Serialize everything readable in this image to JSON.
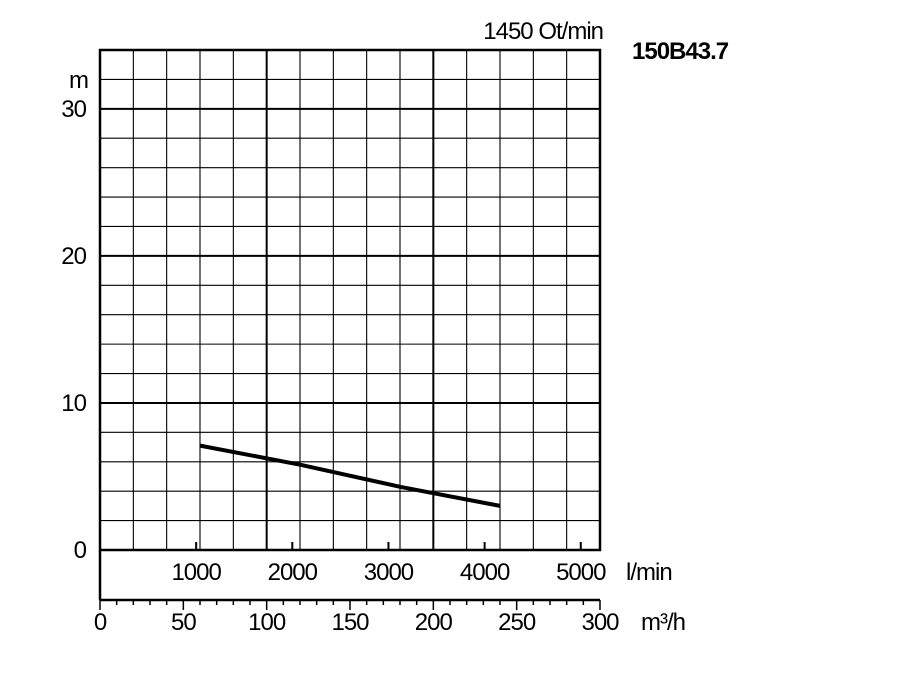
{
  "chart_data": {
    "type": "line",
    "title": "150B43.7",
    "subtitle": "1450 Ot/min",
    "ylabel": "m",
    "xlabel_secondary": "l/min",
    "xlabel": "m³/h",
    "ylim": [
      0,
      34
    ],
    "xlim": [
      0,
      300
    ],
    "x_secondary_lim": [
      0,
      5200
    ],
    "y_ticks": [
      "0",
      "10",
      "20",
      "30"
    ],
    "x_secondary_ticks": [
      "1000",
      "2000",
      "3000",
      "4000",
      "5000"
    ],
    "x_ticks": [
      "0",
      "50",
      "100",
      "150",
      "200",
      "250",
      "300"
    ],
    "grid": true,
    "series": [
      {
        "x": [
          60,
          120,
          180,
          240
        ],
        "y": [
          7.1,
          5.8,
          4.3,
          3.0
        ]
      }
    ]
  }
}
